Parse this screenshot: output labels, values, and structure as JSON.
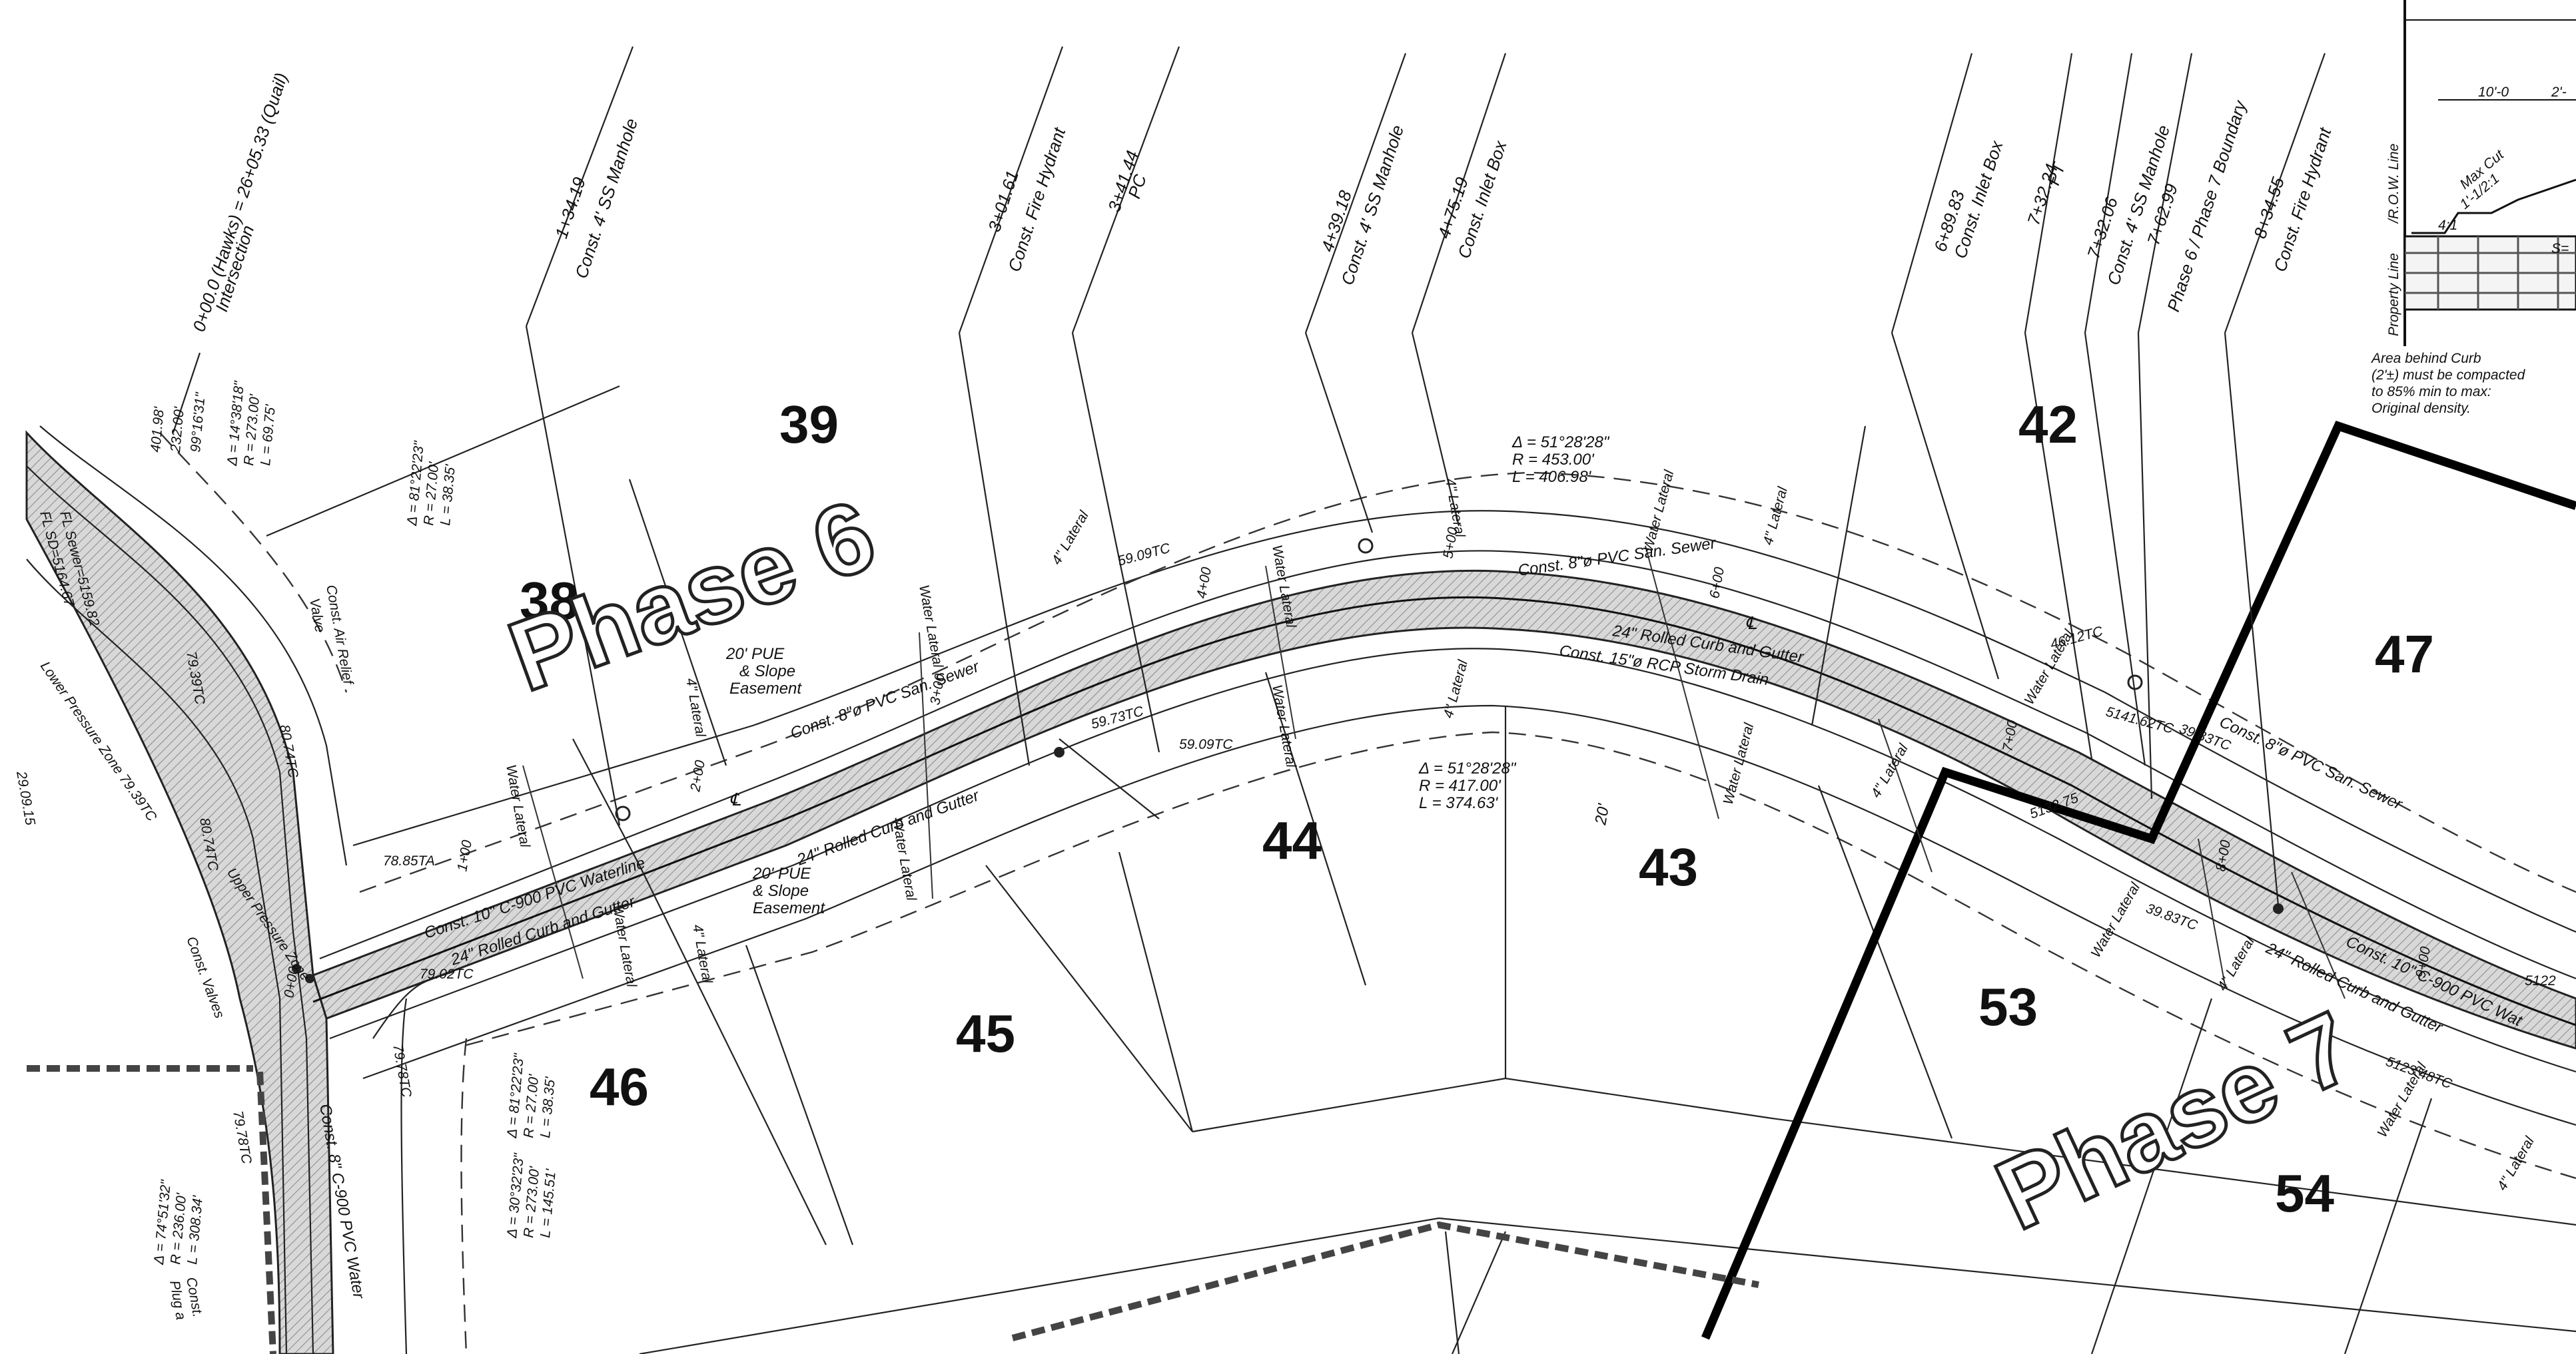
{
  "lots": [
    "38",
    "39",
    "42",
    "43",
    "44",
    "45",
    "46",
    "47",
    "53",
    "54"
  ],
  "phases": [
    "Phase 6",
    "Phase 7"
  ],
  "stations": [
    {
      "sta": "0+00.0 (Hawks) = 26+05.33 (Quail)",
      "desc": "Intersection"
    },
    {
      "sta": "1+34.19",
      "desc": "Const. 4' SS Manhole"
    },
    {
      "sta": "3+01.61",
      "desc": "Const. Fire Hydrant"
    },
    {
      "sta": "3+41.44",
      "desc": "PC"
    },
    {
      "sta": "4+39.18",
      "desc": "Const. 4' SS Manhole"
    },
    {
      "sta": "4+75.19",
      "desc": "Const. Inlet Box"
    },
    {
      "sta": "6+89.83",
      "desc": "Const. Inlet Box"
    },
    {
      "sta": "7+32.24",
      "desc": "PT"
    },
    {
      "sta": "7+32.06",
      "desc": "Const. 4' SS Manhole"
    },
    {
      "sta": "7+62.99",
      "desc": "Phase 6 / Phase 7 Boundary"
    },
    {
      "sta": "8+34.55",
      "desc": "Const. Fire Hydrant"
    }
  ],
  "curves": {
    "outer": [
      "Δ = 51°28'28\"",
      "R = 453.00'",
      "L = 406.98'"
    ],
    "inner": [
      "Δ = 51°28'28\"",
      "R = 417.00'",
      "L = 374.63'"
    ],
    "c1": [
      "Δ = 14°38'18\"",
      "R = 273.00'",
      "L = 69.75'"
    ],
    "c2": [
      "Δ = 81°22'23\"",
      "R = 27.00'",
      "L = 38.35'"
    ],
    "c3": [
      "99°16'31\"",
      "232.00'",
      "401.98'"
    ],
    "c4": [
      "Δ = 81°22'23\"",
      "R = 27.00'",
      "L = 38.35'"
    ],
    "c5": [
      "Δ = 74°51'32\"",
      "R = 236.00'",
      "L = 308.34'"
    ],
    "c6": [
      "Δ = 30°32'23\"",
      "R = 273.00'",
      "L = 145.51'"
    ]
  },
  "callouts": {
    "water_lateral": "Water Lateral",
    "lateral_4": "4\" Lateral",
    "san_sewer": "Const. 8\"ø PVC San. Sewer",
    "storm_drain": "Const. 15\"ø RCP Storm Drain",
    "rolled_curb": "24\" Rolled Curb and Gutter",
    "waterline": "Const. 10\" C-900 PVC Waterline",
    "waterline_cut": "Const. 10\" C-900 PVC Wat",
    "pue_1": "20' PUE",
    "pue_2": "& Slope",
    "pue_3": "Easement",
    "air_relief_1": "Const. Air Relief",
    "air_relief_2": "Valve",
    "valves": "Const. Valves",
    "upper_pressure": "Upper Pressure Zone",
    "lower_pressure": "Lower Pressure Zone 79.39TC",
    "quail_sewer": "Const. 8\" C-900 PVC Water",
    "fl_sewer_1": "FL Sewer=5159.82",
    "fl_sewer_2": "FL SD=5164.67",
    "const_plug": "Const.",
    "const_plug_2": "Plug a",
    "cl": "℄",
    "width": "20'",
    "inset_row": "/R.O.W. Line",
    "inset_prop": "Property Line",
    "inset_dim": "10'-0",
    "inset_dim2": "2'-",
    "inset_max": "Max Cut",
    "inset_slope": "1'-1/2:1",
    "inset_41": "4:1",
    "inset_s": "S=",
    "inset_note": [
      "Area behind Curb",
      "(2'±) must be compacted",
      "to 85% min to max:",
      "Original density."
    ]
  },
  "elevations": {
    "e1": "59.09TC",
    "e2": "59.73TC",
    "e3": "59.09TC",
    "e4": "46.12TC",
    "e5": "5141.62TC",
    "e6": "39.83TC",
    "e7": "39.83TC",
    "e8": "78.85TA",
    "e9": "79.02TC",
    "e10": "79.78TC",
    "e11": "79.78TC",
    "e12": "79.39TC",
    "e13": "80.74TC",
    "e14": "80.74TC",
    "e15": "5123.48TC",
    "e16": "5122",
    "e17": "5132.75",
    "e18": "29.09.15"
  },
  "stations_road": [
    "0+00",
    "1+00",
    "2+00",
    "3+00",
    "4+00",
    "5+00",
    "6+00",
    "7+00",
    "8+00",
    "9+00"
  ]
}
